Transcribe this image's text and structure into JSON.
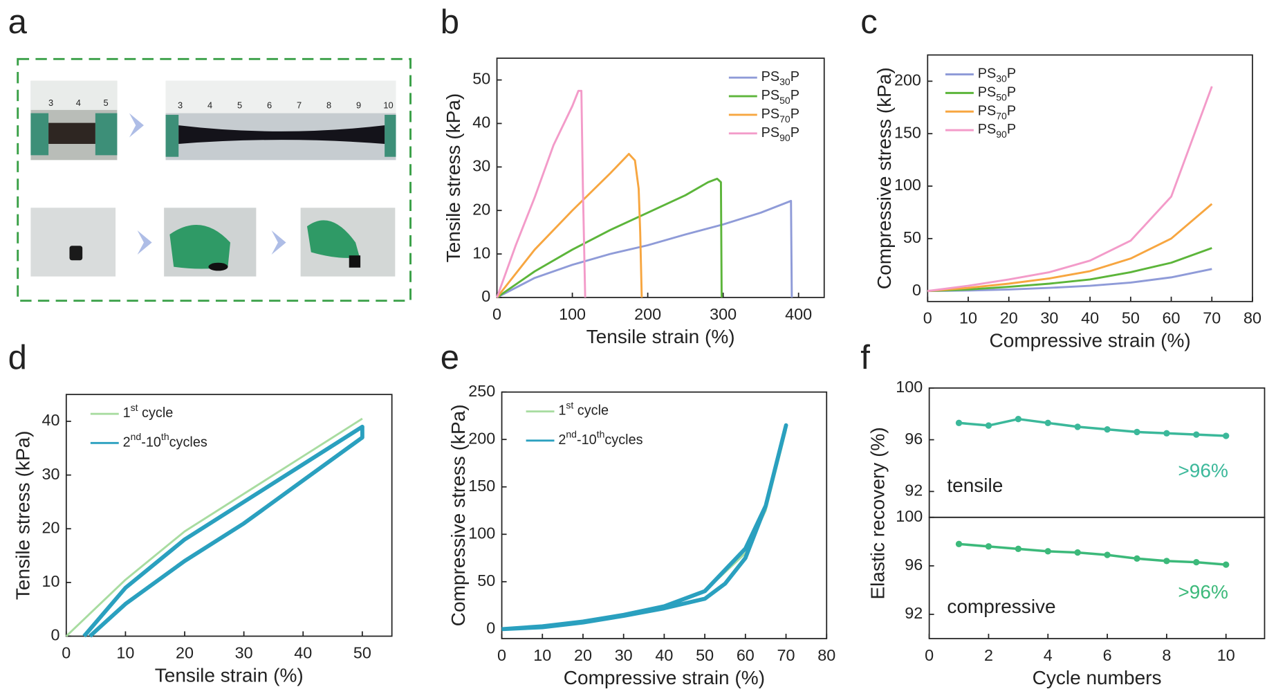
{
  "photo_panel": {
    "panel_label": "a",
    "ruler_short": [
      3,
      4,
      5
    ],
    "ruler_long": [
      3,
      4,
      5,
      6,
      7,
      8,
      9,
      10
    ]
  },
  "chart_data": [
    {
      "panel_label": "b",
      "type": "line",
      "xlabel": "Tensile strain (%)",
      "ylabel": "Tensile stress (kPa)",
      "xlim": [
        0,
        434
      ],
      "ylim": [
        0,
        55
      ],
      "xticks": [
        0,
        100,
        200,
        300,
        400
      ],
      "yticks": [
        0,
        10,
        20,
        30,
        40,
        50
      ],
      "legend": "upper right",
      "series": [
        {
          "name": "PS30P",
          "color": "#8f9bd8",
          "x": [
            0,
            50,
            100,
            150,
            200,
            250,
            300,
            350,
            390,
            391
          ],
          "values": [
            0,
            4.5,
            7.5,
            10,
            12,
            14.5,
            16.8,
            19.5,
            22.2,
            0
          ]
        },
        {
          "name": "PS50P",
          "color": "#5cb53a",
          "x": [
            0,
            50,
            100,
            150,
            200,
            250,
            280,
            292,
            297,
            298
          ],
          "values": [
            0,
            6,
            11,
            15.5,
            19.5,
            23.5,
            26.5,
            27.3,
            26.5,
            0
          ]
        },
        {
          "name": "PS70P",
          "color": "#f7a640",
          "x": [
            0,
            50,
            100,
            150,
            175,
            183,
            188,
            190,
            192
          ],
          "values": [
            0,
            11,
            20,
            28.5,
            33,
            31.5,
            25,
            15,
            0
          ]
        },
        {
          "name": "PS90P",
          "color": "#f39bc9",
          "x": [
            0,
            25,
            50,
            75,
            100,
            108,
            112,
            114,
            117
          ],
          "values": [
            0,
            12,
            23,
            35,
            44,
            47.5,
            47.5,
            25,
            0
          ]
        }
      ]
    },
    {
      "panel_label": "c",
      "type": "line",
      "xlabel": "Compressive strain (%)",
      "ylabel": "Compressive stress (kPa)",
      "xlim": [
        0,
        80
      ],
      "ylim": [
        -10,
        225
      ],
      "xticks": [
        0,
        10,
        20,
        30,
        40,
        50,
        60,
        70,
        80
      ],
      "yticks": [
        0,
        50,
        100,
        150,
        200
      ],
      "legend": "upper left",
      "x": [
        0,
        10,
        20,
        30,
        40,
        50,
        60,
        70
      ],
      "series": [
        {
          "name": "PS30P",
          "color": "#8f9bd8",
          "values": [
            0,
            0.5,
            1.5,
            3,
            5,
            8,
            13,
            21
          ]
        },
        {
          "name": "PS50P",
          "color": "#5cb53a",
          "values": [
            0,
            1.5,
            4,
            7,
            11,
            18,
            27,
            41
          ]
        },
        {
          "name": "PS70P",
          "color": "#f7a640",
          "values": [
            0,
            3,
            7,
            12,
            19,
            31,
            50,
            83
          ]
        },
        {
          "name": "PS90P",
          "color": "#f39bc9",
          "values": [
            0,
            5,
            11,
            18,
            29,
            48,
            90,
            195
          ]
        }
      ]
    },
    {
      "panel_label": "d",
      "type": "line",
      "xlabel": "Tensile strain (%)",
      "ylabel": "Tensile stress (kPa)",
      "xlim": [
        0,
        55
      ],
      "ylim": [
        0,
        45
      ],
      "xticks": [
        0,
        10,
        20,
        30,
        40,
        50
      ],
      "yticks": [
        0,
        10,
        20,
        30,
        40
      ],
      "legend": "upper left",
      "series": [
        {
          "name": "1st cycle",
          "color": "#a8dca0",
          "x": [
            0,
            10,
            20,
            30,
            40,
            50
          ],
          "values": [
            0,
            10.5,
            19.5,
            26.5,
            33.5,
            40.5
          ]
        },
        {
          "name": "2nd-10thcycles",
          "color": "#2aa0bf",
          "x": [
            3,
            10,
            20,
            30,
            40,
            50,
            50,
            40,
            30,
            20,
            10,
            4
          ],
          "values": [
            0,
            9,
            18,
            25,
            32,
            39,
            37,
            29,
            21,
            14,
            6,
            0
          ]
        }
      ]
    },
    {
      "panel_label": "e",
      "type": "line",
      "xlabel": "Compressive strain (%)",
      "ylabel": "Compressive stress (kPa)",
      "xlim": [
        0,
        80
      ],
      "ylim": [
        -10,
        250
      ],
      "xticks": [
        0,
        10,
        20,
        30,
        40,
        50,
        60,
        70,
        80
      ],
      "yticks": [
        0,
        50,
        100,
        150,
        200,
        250
      ],
      "legend": "upper left",
      "series": [
        {
          "name": "1st cycle",
          "color": "#a8dca0",
          "x": [
            0,
            10,
            20,
            30,
            40,
            50,
            60,
            65,
            70
          ],
          "values": [
            0,
            3,
            8,
            15,
            24,
            40,
            80,
            125,
            210
          ]
        },
        {
          "name": "2nd-10thcycles",
          "color": "#2aa0bf",
          "x": [
            0,
            10,
            20,
            30,
            40,
            50,
            60,
            65,
            70,
            65,
            60,
            55,
            50,
            40,
            30,
            20,
            10,
            0
          ],
          "values": [
            0,
            3,
            8,
            15,
            24,
            40,
            85,
            130,
            215,
            130,
            75,
            48,
            32,
            22,
            14,
            7,
            2,
            0
          ]
        }
      ]
    },
    {
      "panel_label": "f",
      "type": "line",
      "markers": true,
      "annotation": "tensile",
      "note": ">96%",
      "color": "#3bb89a",
      "x": [
        1,
        2,
        3,
        4,
        5,
        6,
        7,
        8,
        9,
        10
      ],
      "values": [
        97.3,
        97.1,
        97.6,
        97.3,
        97.0,
        96.8,
        96.6,
        96.5,
        96.4,
        96.3
      ],
      "xlim": [
        0,
        11.3
      ],
      "ylim": [
        90,
        100
      ],
      "yticks": [
        92,
        96,
        100
      ]
    },
    {
      "type": "line",
      "markers": true,
      "annotation": "compressive",
      "note": ">96%",
      "color": "#3cb97a",
      "x": [
        1,
        2,
        3,
        4,
        5,
        6,
        7,
        8,
        9,
        10
      ],
      "values": [
        97.8,
        97.6,
        97.4,
        97.2,
        97.1,
        96.9,
        96.6,
        96.4,
        96.3,
        96.1
      ],
      "xlim": [
        0,
        11.3
      ],
      "ylim": [
        90,
        100
      ],
      "xticks": [
        0,
        2,
        4,
        6,
        8,
        10
      ],
      "yticks": [
        92,
        96,
        100
      ],
      "xlabel": "Cycle numbers",
      "ylabel": "Elastic recovery (%)"
    }
  ]
}
